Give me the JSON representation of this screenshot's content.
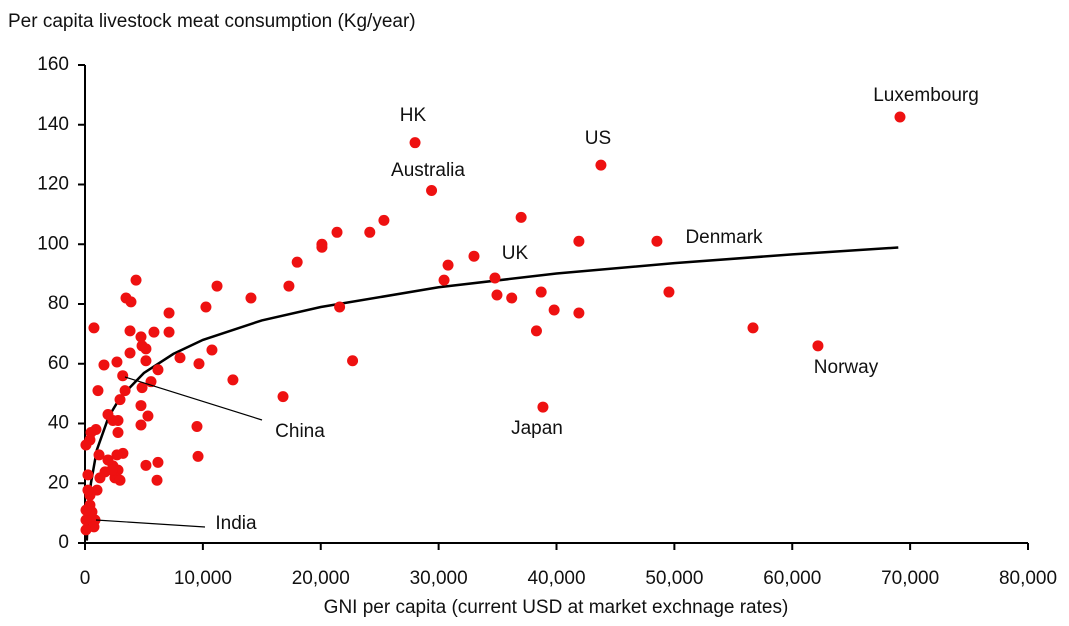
{
  "chart_data": {
    "type": "scatter",
    "y_label": "Per capita livestock meat consumption (Kg/year)",
    "x_label": "GNI per capita (current USD at market exchnage rates)",
    "xlim": [
      0,
      80000
    ],
    "ylim": [
      0,
      160
    ],
    "xticks": [
      0,
      {
        "value": 10000,
        "label": "10,000"
      },
      {
        "value": 20000,
        "label": "20,000"
      },
      {
        "value": 30000,
        "label": "30,000"
      },
      {
        "value": 40000,
        "label": "40,000"
      },
      {
        "value": 50000,
        "label": "50,000"
      },
      {
        "value": 60000,
        "label": "60,000"
      },
      {
        "value": 70000,
        "label": "70,000"
      },
      {
        "value": 80000,
        "label": "80,000"
      }
    ],
    "yticks": [
      0,
      20,
      40,
      60,
      80,
      100,
      120,
      140,
      160
    ],
    "color": "#ee1111",
    "trend_color": "#000000",
    "annotations": [
      "HK",
      "Australia",
      "US",
      "Luxembourg",
      "Denmark",
      "UK",
      "Norway",
      "Japan",
      "China",
      "India"
    ],
    "x": [
      28000,
      29400,
      43770,
      69140,
      48520,
      34780,
      62180,
      38850,
      3200,
      850,
      37000,
      25360,
      24160,
      21380,
      20100,
      20100,
      18000,
      17300,
      21600,
      22700,
      16800,
      33000,
      30800,
      30460,
      34950,
      36200,
      38700,
      39800,
      38300,
      41900,
      41900,
      49540,
      56670,
      11200,
      10260,
      14080,
      12550,
      10770,
      9670,
      9500,
      9590,
      8060,
      7130,
      7130,
      6190,
      5850,
      4330,
      3480,
      3900,
      3820,
      3820,
      4840,
      5170,
      5170,
      4750,
      5600,
      4840,
      5340,
      4750,
      4750,
      6190,
      5170,
      6110,
      2710,
      1610,
      1100,
      760,
      3400,
      2970,
      2800,
      2370,
      1950,
      2800,
      3220,
      2710,
      2800,
      2540,
      2970,
      2370,
      1700,
      1270,
      1020,
      420,
      930,
      510,
      420,
      80,
      250,
      250,
      420,
      590,
      760,
      85,
      85,
      85,
      1190,
      1950,
      2290
    ],
    "values": [
      134,
      118,
      126.5,
      142.6,
      101,
      88.7,
      66,
      45.5,
      56,
      7.7,
      109,
      108,
      104,
      104,
      100,
      99,
      94,
      86,
      79,
      61,
      49,
      96,
      93,
      88,
      83,
      82,
      84,
      78,
      71,
      101,
      77,
      84,
      72,
      86,
      79,
      82,
      54.6,
      64.6,
      60,
      39,
      29,
      62,
      70.6,
      77,
      58,
      70.6,
      88,
      82,
      80.7,
      71,
      63.6,
      66,
      65,
      61,
      69,
      54,
      52,
      42.5,
      39.5,
      46,
      27,
      26,
      21,
      60.6,
      59.6,
      51,
      72,
      51,
      48,
      41,
      41,
      43,
      37,
      30,
      29.5,
      24.4,
      21.8,
      21,
      25.8,
      23.8,
      21.8,
      17.7,
      16,
      38,
      37,
      34.5,
      32.8,
      22.8,
      17.7,
      12.7,
      10.4,
      5.4,
      4.4,
      7.7,
      11,
      29.5,
      27.8,
      24.4
    ],
    "trend": {
      "x": [
        150,
        300,
        500,
        1000,
        2000,
        3000,
        5000,
        7500,
        10000,
        15000,
        20000,
        30000,
        40000,
        50000,
        60000,
        69000
      ],
      "values": [
        0.8,
        11.8,
        20.0,
        31.1,
        42.2,
        48.8,
        56.9,
        63.3,
        68.0,
        74.5,
        79.0,
        85.6,
        90.2,
        93.7,
        96.6,
        98.9
      ]
    }
  }
}
